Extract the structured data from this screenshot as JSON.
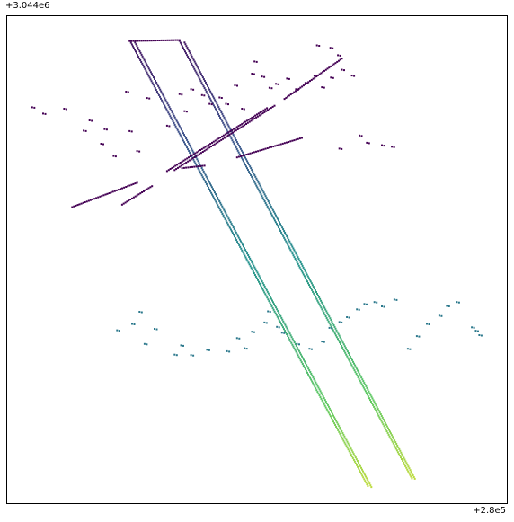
{
  "chart_data": {
    "type": "scatter",
    "title": "",
    "xlabel": "",
    "ylabel": "",
    "x_offset_label": "+2.8e5",
    "y_offset_label": "+3.044e6",
    "xlim": [
      0,
      100
    ],
    "ylim": [
      0,
      100
    ],
    "grid": false,
    "ticks_shown": false,
    "colormap": "viridis",
    "color_scale": [
      "#440154",
      "#3b528b",
      "#21918c",
      "#5ec962",
      "#fde725"
    ],
    "series": [
      {
        "kind": "line",
        "color_values": [
          0.06,
          0.5,
          0.9
        ],
        "x": [
          24.6,
          72.2
        ],
        "y": [
          94.9,
          3.5
        ]
      },
      {
        "kind": "line",
        "color_values": [
          0.06,
          0.5,
          0.9
        ],
        "x": [
          25.6,
          72.9
        ],
        "y": [
          94.6,
          3.3
        ]
      },
      {
        "kind": "line",
        "color_values": [
          0.06,
          0.5,
          0.9
        ],
        "x": [
          34.5,
          81.0
        ],
        "y": [
          94.9,
          5.1
        ]
      },
      {
        "kind": "line",
        "color_values": [
          0.06,
          0.5,
          0.9
        ],
        "x": [
          35.5,
          81.6
        ],
        "y": [
          94.6,
          5.0
        ]
      },
      {
        "kind": "line",
        "color_values": [
          0.0,
          0.0
        ],
        "x": [
          13.0,
          26.0
        ],
        "y": [
          60.8,
          65.8
        ]
      },
      {
        "kind": "line",
        "color_values": [
          0.0,
          0.0
        ],
        "x": [
          23.0,
          29.0
        ],
        "y": [
          61.3,
          65.1
        ]
      },
      {
        "kind": "line",
        "color_values": [
          0.0,
          0.0
        ],
        "x": [
          32.0,
          52.0
        ],
        "y": [
          68.2,
          81.1
        ]
      },
      {
        "kind": "line",
        "color_values": [
          0.0,
          0.0
        ],
        "x": [
          33.5,
          53.5
        ],
        "y": [
          68.4,
          81.6
        ]
      },
      {
        "kind": "line",
        "color_values": [
          0.0,
          0.0
        ],
        "x": [
          46.0,
          59.0
        ],
        "y": [
          71.0,
          75.0
        ]
      },
      {
        "kind": "line",
        "color_values": [
          0.0,
          0.0
        ],
        "x": [
          55.5,
          67.0
        ],
        "y": [
          83.0,
          91.3
        ]
      },
      {
        "kind": "line",
        "color_values": [
          0.0,
          0.0
        ],
        "x": [
          24.5,
          34.5
        ],
        "y": [
          94.9,
          95.1
        ]
      },
      {
        "kind": "line",
        "color_values": [
          0.0,
          0.0
        ],
        "x": [
          35.0,
          39.5
        ],
        "y": [
          68.8,
          69.3
        ]
      },
      {
        "kind": "points",
        "color_values": [
          0.0
        ],
        "x": [
          5.0,
          7.2,
          11.4,
          15.3,
          16.5,
          18.8,
          19.5,
          21.3,
          23.8,
          24.5,
          26.0,
          28.0,
          32.0,
          34.5,
          35.5,
          36.8,
          39.0,
          40.5,
          42.5,
          43.8,
          45.6,
          47.0,
          49.0,
          51.0,
          52.5,
          53.8,
          56.0,
          57.8,
          59.7,
          61.5,
          63.0,
          64.8,
          66.2,
          49.5,
          62.0,
          64.7,
          67.0,
          69.0,
          72.0,
          75.0,
          77.0,
          66.5,
          70.5
        ],
        "y": [
          81.3,
          80.0,
          81.0,
          76.5,
          78.6,
          73.8,
          76.8,
          71.3,
          84.5,
          76.4,
          72.3,
          83.2,
          77.5,
          84.0,
          80.5,
          85.0,
          83.8,
          82.0,
          83.3,
          82.0,
          85.8,
          81.0,
          88.2,
          87.6,
          85.3,
          86.1,
          87.2,
          85.0,
          86.3,
          87.8,
          85.4,
          87.4,
          92.0,
          90.7,
          94.0,
          93.5,
          89.0,
          87.8,
          74.0,
          73.5,
          73.2,
          72.8,
          75.5
        ]
      },
      {
        "kind": "points",
        "color_values": [
          0.4
        ],
        "x": [
          25.0,
          26.5,
          22.0,
          27.5,
          29.5,
          33.5,
          34.8,
          36.8,
          40.0,
          44.0,
          46.0,
          47.5,
          49.0,
          51.5,
          52.2,
          54.0,
          55.0,
          58.0,
          60.5,
          63.0,
          64.5,
          66.5,
          68.0,
          70.0,
          71.5,
          73.5,
          75.0,
          77.5,
          80.2,
          82.0,
          84.0,
          86.5,
          88.0,
          90.0,
          93.0,
          93.8,
          94.5
        ],
        "y": [
          36.8,
          39.3,
          35.5,
          32.7,
          35.8,
          30.5,
          32.4,
          30.4,
          31.5,
          31.2,
          33.9,
          31.8,
          35.2,
          37.1,
          39.4,
          36.2,
          35.0,
          32.7,
          31.7,
          33.2,
          36.0,
          37.2,
          38.2,
          39.8,
          40.9,
          41.3,
          40.4,
          41.8,
          31.7,
          34.3,
          36.8,
          38.5,
          40.5,
          41.3,
          36.1,
          35.4,
          34.5
        ]
      }
    ]
  }
}
